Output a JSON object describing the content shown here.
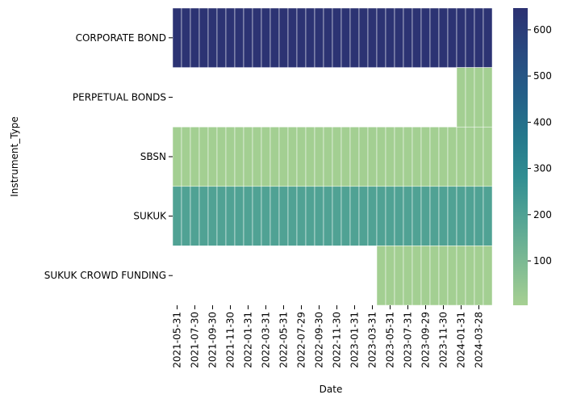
{
  "chart_data": {
    "type": "heatmap",
    "xlabel": "Date",
    "ylabel": "Instrument_Type",
    "rows": [
      "CORPORATE BOND",
      "PERPETUAL BONDS",
      "SBSN",
      "SUKUK",
      "SUKUK CROWD FUNDING"
    ],
    "categories": [
      "2021-05-31",
      null,
      "2021-07-30",
      null,
      "2021-09-30",
      null,
      "2021-11-30",
      null,
      "2022-01-31",
      null,
      "2022-03-31",
      null,
      "2022-05-31",
      null,
      "2022-07-29",
      null,
      "2022-09-30",
      null,
      "2022-11-30",
      null,
      "2023-01-31",
      null,
      "2023-03-31",
      null,
      "2023-05-31",
      null,
      "2023-07-31",
      null,
      "2023-09-29",
      null,
      "2023-11-30",
      null,
      "2024-01-31",
      null,
      "2024-03-28",
      null
    ],
    "values": [
      [
        640,
        640,
        640,
        640,
        640,
        640,
        640,
        640,
        640,
        640,
        640,
        640,
        640,
        640,
        640,
        640,
        640,
        640,
        640,
        640,
        640,
        640,
        640,
        640,
        640,
        640,
        640,
        640,
        640,
        640,
        640,
        640,
        640,
        640,
        640,
        640
      ],
      [
        null,
        null,
        null,
        null,
        null,
        null,
        null,
        null,
        null,
        null,
        null,
        null,
        null,
        null,
        null,
        null,
        null,
        null,
        null,
        null,
        null,
        null,
        null,
        null,
        null,
        null,
        null,
        null,
        null,
        null,
        null,
        null,
        10,
        10,
        10,
        10
      ],
      [
        10,
        10,
        10,
        10,
        10,
        10,
        10,
        10,
        10,
        10,
        10,
        10,
        10,
        10,
        10,
        10,
        10,
        10,
        10,
        10,
        10,
        10,
        10,
        10,
        10,
        10,
        10,
        10,
        10,
        10,
        10,
        10,
        10,
        10,
        10,
        10
      ],
      [
        200,
        200,
        200,
        200,
        200,
        200,
        200,
        200,
        200,
        200,
        200,
        200,
        200,
        200,
        200,
        200,
        200,
        200,
        200,
        200,
        200,
        200,
        200,
        200,
        200,
        200,
        200,
        200,
        200,
        200,
        200,
        200,
        200,
        200,
        200,
        200
      ],
      [
        null,
        null,
        null,
        null,
        null,
        null,
        null,
        null,
        null,
        null,
        null,
        null,
        null,
        null,
        null,
        null,
        null,
        null,
        null,
        null,
        null,
        null,
        null,
        10,
        10,
        10,
        10,
        10,
        10,
        10,
        10,
        10,
        10,
        10,
        10,
        10
      ]
    ],
    "clim": [
      4,
      647
    ],
    "cticks": [
      100,
      200,
      300,
      400,
      500,
      600
    ],
    "colorscale": [
      "#a6d092",
      "#7dba93",
      "#55a594",
      "#318e92",
      "#24778c",
      "#245e88",
      "#28487f",
      "#2c3172"
    ]
  }
}
